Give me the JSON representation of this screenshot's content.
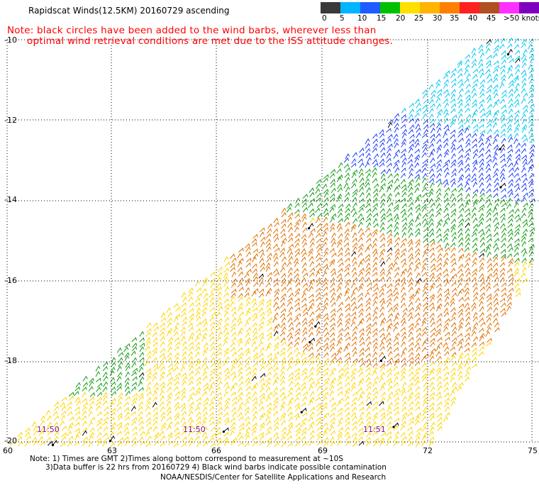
{
  "header": {
    "title": "Rapidscat Winds(12.5KM) 20160729 ascending",
    "note_line1": "Note: black circles have been added to the wind barbs, wherever less than",
    "note_line2": "optimal wind retrieval conditions are met due to the ISS attitude changes."
  },
  "legend": {
    "items": [
      {
        "label": "0",
        "color": "#3a3a3a"
      },
      {
        "label": "5",
        "color": "#00b4ff"
      },
      {
        "label": "10",
        "color": "#1e5cff"
      },
      {
        "label": "15",
        "color": "#00c000"
      },
      {
        "label": "20",
        "color": "#ffe000"
      },
      {
        "label": "25",
        "color": "#ffb400"
      },
      {
        "label": "30",
        "color": "#ff8000"
      },
      {
        "label": "35",
        "color": "#ff2020"
      },
      {
        "label": "40",
        "color": "#b05020"
      },
      {
        "label": "45",
        "color": "#ff30ff"
      },
      {
        "label": ">50 knots",
        "color": "#8000c0"
      }
    ],
    "unit": "knots"
  },
  "axes": {
    "lat_labels": [
      "-10",
      "-12",
      "-14",
      "-16",
      "-18",
      "-20"
    ],
    "lon_labels": [
      "60",
      "63",
      "66",
      "69",
      "72",
      "75"
    ]
  },
  "time_labels": [
    "11:50",
    "11:50",
    "11:51"
  ],
  "footer": {
    "line1": "Note: 1) Times are GMT 2)Times along bottom correspond to measurement at ~10S",
    "line2": "3)Data buffer is 22 hrs from 20160729 4) Black wind barbs indicate possible contamination",
    "line3": "NOAA/NESDIS/Center for Satellite Applications and Research"
  },
  "colors": {
    "cyan": "#00c8f0",
    "blue": "#1a3cff",
    "green": "#109c10",
    "yellow": "#ffd400",
    "orange": "#e07000",
    "black": "#000000",
    "note_red": "#ff0000",
    "time_purple": "#7a1aa0"
  }
}
